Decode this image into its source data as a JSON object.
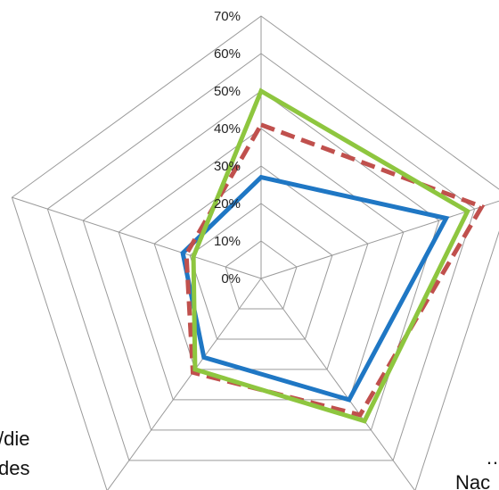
{
  "chart_data": {
    "type": "radar",
    "r_ticks": [
      "0%",
      "10%",
      "20%",
      "30%",
      "40%",
      "50%",
      "60%",
      "70%"
    ],
    "r_max": 70,
    "axis_fragments": [
      "/die",
      "des",
      "…",
      "Nac"
    ],
    "series": [
      {
        "color": "#1f77c4",
        "dash": false,
        "values": [
          27,
          52,
          40,
          26,
          22
        ]
      },
      {
        "color": "#c0504d",
        "dash": true,
        "values": [
          41,
          62,
          45,
          31,
          21
        ]
      },
      {
        "color": "#8ec63f",
        "dash": false,
        "values": [
          50,
          58,
          47,
          30,
          19
        ]
      }
    ],
    "grid": true
  }
}
